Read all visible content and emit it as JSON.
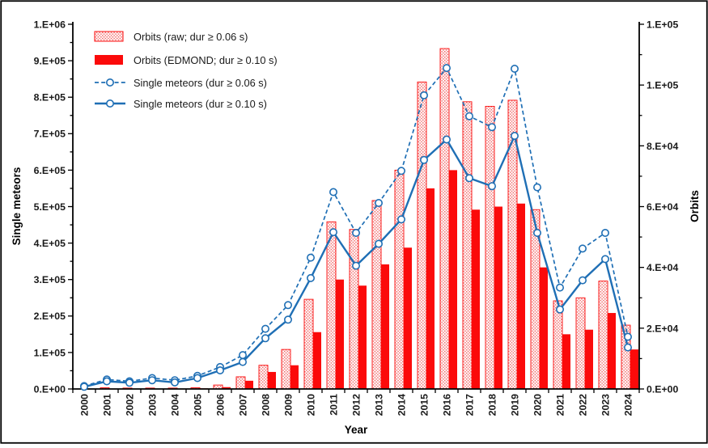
{
  "chart_data": {
    "type": "combo-bar-line",
    "title": "",
    "xlabel": "Year",
    "ylabel_left": "Single meteors",
    "ylabel_right": "Orbits",
    "legend_position": "top-left-inside",
    "grid": false,
    "categories": [
      "2000",
      "2001",
      "2002",
      "2003",
      "2004",
      "2005",
      "2006",
      "2007",
      "2008",
      "2009",
      "2010",
      "2011",
      "2012",
      "2013",
      "2014",
      "2015",
      "2016",
      "2017",
      "2018",
      "2019",
      "2020",
      "2021",
      "2022",
      "2023",
      "2024"
    ],
    "left_axis": {
      "min": 0,
      "max": 1000000,
      "major_step": 100000,
      "minor_step": 50000,
      "tick_labels": [
        "0.E+00",
        "1.E+05",
        "2.E+05",
        "3.E+05",
        "4.E+05",
        "5.E+05",
        "6.E+05",
        "7.E+05",
        "8.E+05",
        "9.E+05",
        "1.E+06"
      ]
    },
    "right_axis": {
      "min": 0,
      "max": 120000,
      "major_step": 20000,
      "minor_step": 10000,
      "tick_labels": [
        "0.E+00",
        "2.E+04",
        "4.E+04",
        "6.E+04",
        "8.E+04",
        "1.E+05",
        "1.E+05"
      ]
    },
    "series": [
      {
        "name": "Orbits (raw; dur ≥ 0.06 s)",
        "type": "bar",
        "axis": "right",
        "bar_style": "hatched",
        "values": [
          0,
          400,
          300,
          300,
          300,
          400,
          1300,
          4000,
          7800,
          13000,
          29500,
          55000,
          52500,
          62000,
          72000,
          101000,
          112000,
          94500,
          93000,
          95000,
          59000,
          29000,
          30000,
          35500,
          21000
        ]
      },
      {
        "name": "Orbits (EDMOND; dur ≥ 0.10 s)",
        "type": "bar",
        "axis": "right",
        "bar_style": "solid",
        "values": [
          0,
          100,
          100,
          100,
          100,
          200,
          600,
          2700,
          5600,
          7800,
          18700,
          36000,
          34000,
          41000,
          46500,
          66000,
          72000,
          59000,
          60000,
          61000,
          40000,
          18000,
          19500,
          25000,
          13000
        ]
      },
      {
        "name": "Single meteors (dur ≥ 0.06 s)",
        "type": "line",
        "axis": "left",
        "line_style": "dashed",
        "marker": "open-circle",
        "values": [
          8000,
          26000,
          21000,
          30000,
          24000,
          36000,
          60000,
          93000,
          165000,
          230000,
          360000,
          540000,
          428000,
          510000,
          598000,
          805000,
          880000,
          748000,
          718000,
          878000,
          553000,
          278000,
          385000,
          428000,
          143000
        ]
      },
      {
        "name": "Single meteors (dur ≥ 0.10 s)",
        "type": "line",
        "axis": "left",
        "line_style": "solid",
        "marker": "open-circle",
        "values": [
          6000,
          21000,
          17000,
          24000,
          18000,
          30000,
          51000,
          74000,
          139000,
          190000,
          304000,
          430000,
          338000,
          398000,
          465000,
          628000,
          684000,
          578000,
          556000,
          694000,
          428000,
          218000,
          298000,
          356000,
          114000
        ]
      }
    ]
  },
  "colors": {
    "line_blue": "#1f6fb5",
    "bar_red": "#fb0a0a",
    "hatch_dot": "#f26b6b",
    "axis_black": "#000000",
    "tick_text": "#1a1a1a"
  }
}
